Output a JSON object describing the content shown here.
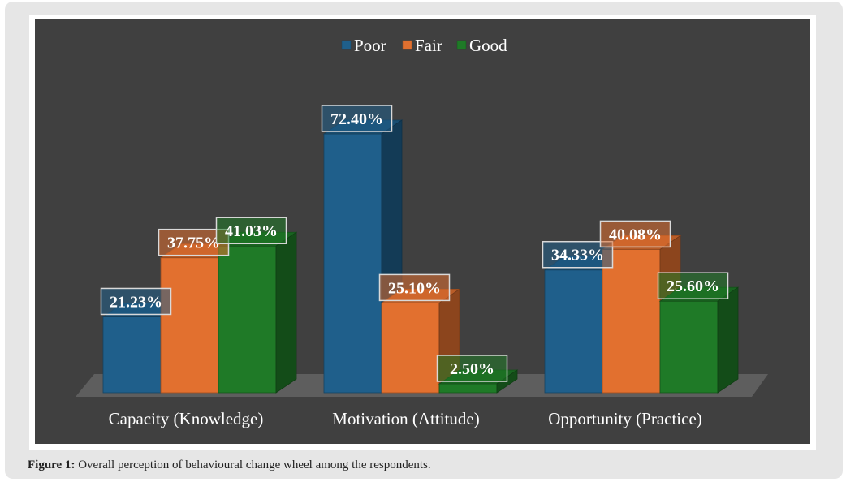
{
  "chart_data": {
    "type": "bar",
    "style": "3d-clustered-column",
    "categories": [
      "Capacity (Knowledge)",
      "Motivation (Attitude)",
      "Opportunity (Practice)"
    ],
    "series": [
      {
        "name": "Poor",
        "values": [
          21.23,
          72.4,
          34.33
        ],
        "labels": [
          "21.23%",
          "72.40%",
          "34.33%"
        ],
        "color": "#1f5f8b"
      },
      {
        "name": "Fair",
        "values": [
          37.75,
          25.1,
          40.08
        ],
        "labels": [
          "37.75%",
          "25.10%",
          "40.08%"
        ],
        "color": "#e2702f"
      },
      {
        "name": "Good",
        "values": [
          41.03,
          2.5,
          25.6
        ],
        "labels": [
          "41.03%",
          "2.50%",
          "25.60%"
        ],
        "color": "#1f7a27"
      }
    ],
    "ylim": [
      0,
      80
    ],
    "legend_position": "top",
    "grid": false,
    "background": "#404040",
    "title": "",
    "xlabel": "",
    "ylabel": ""
  },
  "caption": {
    "label": "Figure 1:",
    "text": " Overall perception of behavioural change wheel among the respondents."
  }
}
